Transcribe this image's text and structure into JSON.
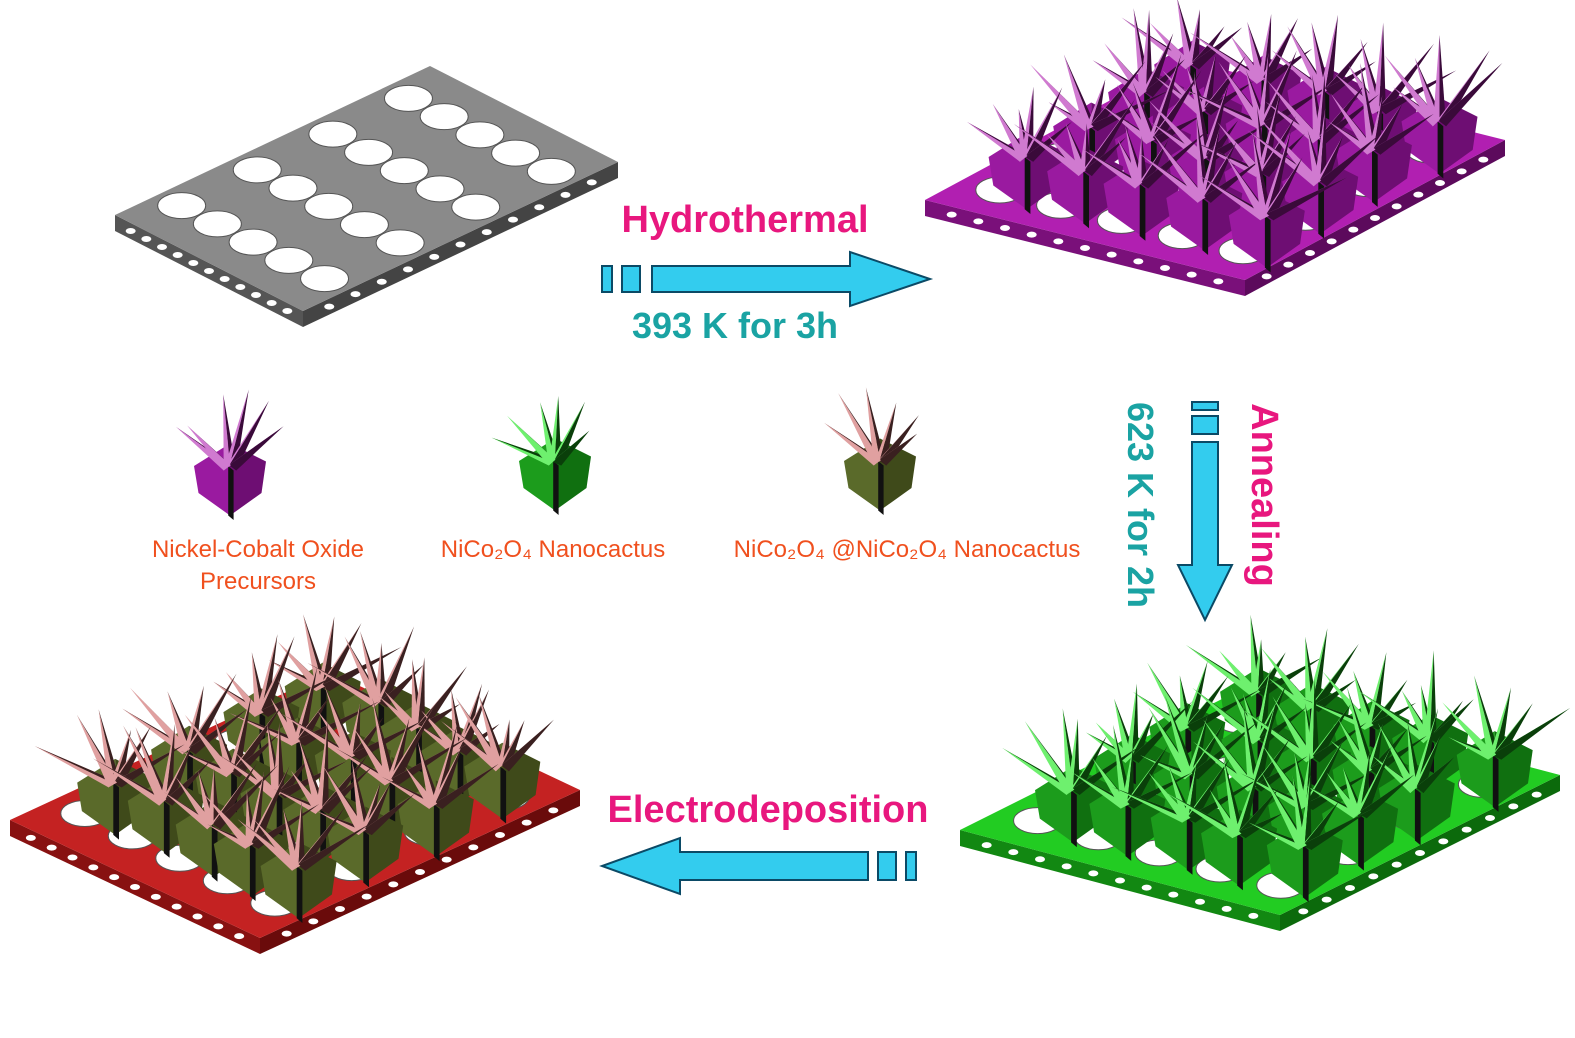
{
  "steps": [
    {
      "label": "Hydrothermal",
      "condition": "393 K for 3h"
    },
    {
      "label": "Annealing",
      "condition": "623 K for 2h"
    },
    {
      "label": "Electrodeposition"
    }
  ],
  "legend": [
    {
      "lines": [
        "Nickel-Cobalt Oxide",
        "Precursors"
      ]
    },
    {
      "lines": [
        "NiCo₂O₄ Nanocactus"
      ]
    },
    {
      "lines": [
        "NiCo₂O₄ @NiCo₂O₄ Nanocactus"
      ]
    }
  ]
}
